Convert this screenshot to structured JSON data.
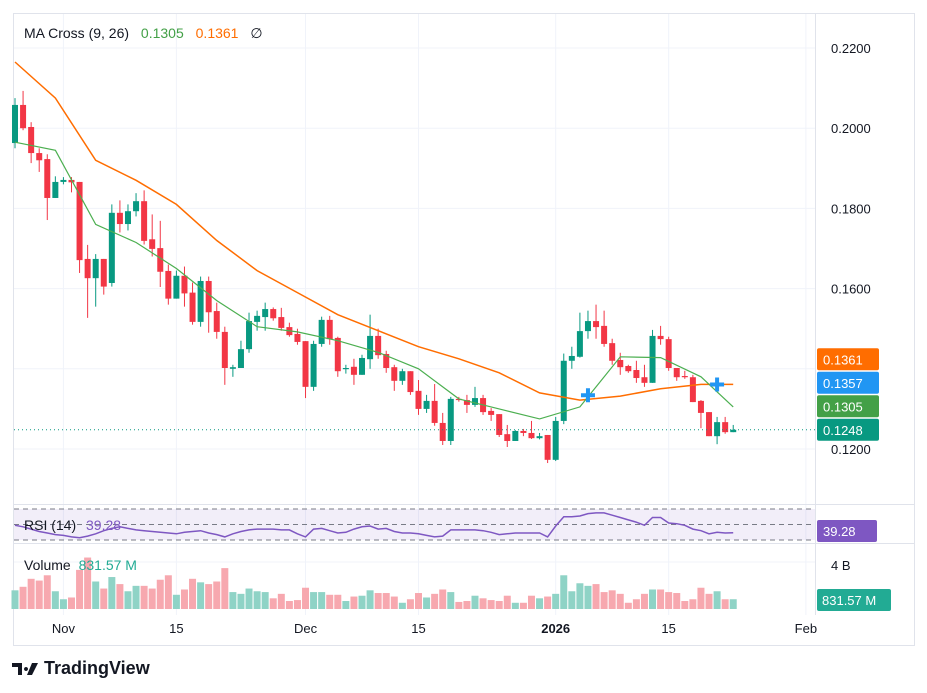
{
  "legend": {
    "title": "MA Cross (9, 26)",
    "fast_value": "0.1305",
    "slow_value": "0.1361",
    "visibility_icon": "∅"
  },
  "rsi_legend": {
    "title": "RSI (14)",
    "value": "39.28"
  },
  "volume_legend": {
    "title": "Volume",
    "value": "831.57 M"
  },
  "logo": {
    "text": "TradingView"
  },
  "colors": {
    "up": "#089981",
    "down": "#f23645",
    "vol_up": "#8fd3c6",
    "vol_down": "#f7a8af",
    "ma_fast": "#4caf50",
    "ma_slow": "#ff6d00",
    "cross": "#2196f3",
    "rsi": "#7e57c2"
  },
  "badges": [
    {
      "text": "0.1361",
      "value": 0.1361,
      "color": "#ff6d00"
    },
    {
      "text": "0.1357",
      "value": 0.1357,
      "color": "#2196f3"
    },
    {
      "text": "0.1305",
      "value": 0.1305,
      "color": "#43a047"
    },
    {
      "text": "0.1248",
      "value": 0.1248,
      "color": "#089981"
    }
  ],
  "rsi_badge": {
    "text": "39.28",
    "color": "#7e57c2"
  },
  "volume_badge": {
    "text": "831.57 M",
    "color": "#22ab94"
  },
  "chart_data": {
    "type": "candlestick",
    "price_axis": {
      "ticks": [
        {
          "v": 0.22,
          "t": "0.2200"
        },
        {
          "v": 0.2,
          "t": "0.2000"
        },
        {
          "v": 0.18,
          "t": "0.1800"
        },
        {
          "v": 0.16,
          "t": "0.1600"
        },
        {
          "v": 0.12,
          "t": "0.1200"
        }
      ],
      "range": [
        0.1135,
        0.2275
      ]
    },
    "last_price": 0.1248,
    "time_axis": [
      {
        "t": "Nov",
        "i": 6
      },
      {
        "t": "15",
        "i": 20
      },
      {
        "t": "Dec",
        "i": 36
      },
      {
        "t": "15",
        "i": 50
      },
      {
        "t": "2026",
        "i": 67,
        "bold": true
      },
      {
        "t": "15",
        "i": 81
      },
      {
        "t": "Feb",
        "i": 98
      }
    ],
    "ohlc": [
      [
        0.1963,
        0.2075,
        0.195,
        0.2058
      ],
      [
        0.2058,
        0.2093,
        0.1995,
        0.2
      ],
      [
        0.2003,
        0.2015,
        0.1913,
        0.1938
      ],
      [
        0.1938,
        0.195,
        0.1891,
        0.192
      ],
      [
        0.1923,
        0.1935,
        0.1771,
        0.1826
      ],
      [
        0.1826,
        0.188,
        0.1826,
        0.1866
      ],
      [
        0.1866,
        0.1878,
        0.186,
        0.1871
      ],
      [
        0.1871,
        0.1878,
        0.184,
        0.1865
      ],
      [
        0.1866,
        0.1866,
        0.1639,
        0.1671
      ],
      [
        0.1674,
        0.1709,
        0.1527,
        0.1626
      ],
      [
        0.1626,
        0.1686,
        0.1555,
        0.1674
      ],
      [
        0.1674,
        0.1674,
        0.1585,
        0.1605
      ],
      [
        0.1614,
        0.181,
        0.1605,
        0.1789
      ],
      [
        0.1789,
        0.182,
        0.174,
        0.1761
      ],
      [
        0.1761,
        0.181,
        0.1745,
        0.1793
      ],
      [
        0.1793,
        0.1838,
        0.178,
        0.1818
      ],
      [
        0.1818,
        0.1845,
        0.171,
        0.1719
      ],
      [
        0.1723,
        0.1785,
        0.168,
        0.1699
      ],
      [
        0.1701,
        0.1769,
        0.1604,
        0.1642
      ],
      [
        0.1644,
        0.166,
        0.156,
        0.1575
      ],
      [
        0.1575,
        0.1645,
        0.1575,
        0.1632
      ],
      [
        0.1632,
        0.1655,
        0.1555,
        0.1588
      ],
      [
        0.159,
        0.1615,
        0.151,
        0.1517
      ],
      [
        0.1517,
        0.163,
        0.1505,
        0.1619
      ],
      [
        0.1619,
        0.163,
        0.149,
        0.1541
      ],
      [
        0.1544,
        0.1565,
        0.1475,
        0.1492
      ],
      [
        0.1492,
        0.1505,
        0.136,
        0.1402
      ],
      [
        0.14,
        0.141,
        0.138,
        0.1404
      ],
      [
        0.1402,
        0.147,
        0.1402,
        0.1449
      ],
      [
        0.1449,
        0.154,
        0.144,
        0.1519
      ],
      [
        0.1517,
        0.1545,
        0.1495,
        0.1532
      ],
      [
        0.1529,
        0.1565,
        0.1495,
        0.1549
      ],
      [
        0.1549,
        0.1553,
        0.152,
        0.1526
      ],
      [
        0.1529,
        0.1552,
        0.1495,
        0.1502
      ],
      [
        0.1504,
        0.1515,
        0.148,
        0.1484
      ],
      [
        0.1487,
        0.15,
        0.146,
        0.1467
      ],
      [
        0.1469,
        0.1469,
        0.1327,
        0.1355
      ],
      [
        0.1355,
        0.147,
        0.1345,
        0.1462
      ],
      [
        0.1462,
        0.153,
        0.1455,
        0.1522
      ],
      [
        0.1522,
        0.1532,
        0.146,
        0.1474
      ],
      [
        0.1477,
        0.148,
        0.138,
        0.1394
      ],
      [
        0.1399,
        0.141,
        0.1388,
        0.1402
      ],
      [
        0.1405,
        0.1425,
        0.136,
        0.1385
      ],
      [
        0.1385,
        0.1435,
        0.1385,
        0.1427
      ],
      [
        0.1424,
        0.1535,
        0.14,
        0.1482
      ],
      [
        0.1482,
        0.15,
        0.1425,
        0.1434
      ],
      [
        0.1437,
        0.1445,
        0.139,
        0.1402
      ],
      [
        0.1404,
        0.141,
        0.1345,
        0.137
      ],
      [
        0.137,
        0.14,
        0.136,
        0.1394
      ],
      [
        0.1394,
        0.1394,
        0.1335,
        0.1342
      ],
      [
        0.1345,
        0.1372,
        0.1285,
        0.13
      ],
      [
        0.13,
        0.1335,
        0.129,
        0.132
      ],
      [
        0.132,
        0.1362,
        0.1258,
        0.1265
      ],
      [
        0.1265,
        0.129,
        0.121,
        0.122
      ],
      [
        0.122,
        0.133,
        0.121,
        0.1325
      ],
      [
        0.1325,
        0.133,
        0.1318,
        0.1322
      ],
      [
        0.1322,
        0.1335,
        0.129,
        0.131
      ],
      [
        0.131,
        0.1355,
        0.1305,
        0.1327
      ],
      [
        0.1327,
        0.1335,
        0.1285,
        0.1292
      ],
      [
        0.1295,
        0.1302,
        0.127,
        0.1285
      ],
      [
        0.1287,
        0.1287,
        0.123,
        0.1235
      ],
      [
        0.1237,
        0.126,
        0.1205,
        0.122
      ],
      [
        0.122,
        0.1247,
        0.122,
        0.1245
      ],
      [
        0.1245,
        0.125,
        0.1232,
        0.124
      ],
      [
        0.124,
        0.127,
        0.1225,
        0.1227
      ],
      [
        0.1227,
        0.124,
        0.1224,
        0.1232
      ],
      [
        0.1235,
        0.1235,
        0.1165,
        0.1173
      ],
      [
        0.1173,
        0.128,
        0.117,
        0.127
      ],
      [
        0.127,
        0.1438,
        0.1262,
        0.142
      ],
      [
        0.142,
        0.1455,
        0.14,
        0.1432
      ],
      [
        0.143,
        0.154,
        0.1428,
        0.1494
      ],
      [
        0.1494,
        0.1545,
        0.1475,
        0.1519
      ],
      [
        0.1519,
        0.156,
        0.1475,
        0.1504
      ],
      [
        0.1507,
        0.1545,
        0.1455,
        0.1462
      ],
      [
        0.1464,
        0.1475,
        0.141,
        0.142
      ],
      [
        0.1422,
        0.144,
        0.1385,
        0.1404
      ],
      [
        0.1407,
        0.141,
        0.139,
        0.1394
      ],
      [
        0.1397,
        0.142,
        0.1365,
        0.1377
      ],
      [
        0.1379,
        0.141,
        0.1355,
        0.1365
      ],
      [
        0.1365,
        0.1497,
        0.1365,
        0.1482
      ],
      [
        0.1482,
        0.1507,
        0.146,
        0.1474
      ],
      [
        0.1474,
        0.148,
        0.1395,
        0.1402
      ],
      [
        0.1402,
        0.1402,
        0.137,
        0.1379
      ],
      [
        0.1382,
        0.1395,
        0.1375,
        0.1379
      ],
      [
        0.1379,
        0.1385,
        0.1317,
        0.1317
      ],
      [
        0.132,
        0.1322,
        0.1252,
        0.129
      ],
      [
        0.1292,
        0.1292,
        0.1232,
        0.1232
      ],
      [
        0.1232,
        0.128,
        0.1212,
        0.1267
      ],
      [
        0.1267,
        0.128,
        0.1238,
        0.1242
      ],
      [
        0.1242,
        0.126,
        0.1242,
        0.1248
      ]
    ],
    "ma_fast": {
      "every": 5,
      "values": [
        0.1965,
        0.1945,
        0.176,
        0.1715,
        0.165,
        0.157,
        0.1505,
        0.1492,
        0.147,
        0.1441,
        0.14,
        0.1325,
        0.13,
        0.1275,
        0.1305,
        0.143,
        0.1428,
        0.138,
        0.1305
      ]
    },
    "ma_slow": {
      "every": 5,
      "values": [
        0.2165,
        0.2075,
        0.192,
        0.187,
        0.181,
        0.172,
        0.1645,
        0.159,
        0.1535,
        0.1495,
        0.1455,
        0.1425,
        0.139,
        0.134,
        0.1322,
        0.1332,
        0.135,
        0.1361,
        0.1361
      ]
    },
    "crosses": [
      {
        "i": 71,
        "v": 0.1334
      },
      {
        "i": 87,
        "v": 0.1361
      }
    ],
    "rsi": {
      "levels": [
        70,
        50,
        30
      ],
      "values": [
        49,
        47,
        44,
        41,
        39,
        37,
        36,
        34,
        33,
        35,
        38,
        42,
        45,
        47,
        45,
        43,
        42,
        41,
        40,
        39,
        38,
        40,
        41,
        42,
        39,
        37,
        34,
        38,
        41,
        43,
        44,
        44,
        44,
        43,
        43,
        38,
        34,
        44,
        45,
        42,
        39,
        40,
        44,
        47,
        48,
        44,
        45,
        41,
        39,
        39,
        38,
        36,
        34,
        35,
        43,
        43,
        43,
        43,
        42,
        40,
        37,
        38,
        39,
        39,
        39,
        39,
        34,
        48,
        60,
        60,
        61,
        64,
        65,
        65,
        62,
        59,
        56,
        53,
        49,
        59,
        59,
        52,
        51,
        49,
        44,
        42,
        38,
        40,
        39,
        39.28
      ]
    },
    "volume": {
      "unit": "B",
      "axis_tick": {
        "v": 4,
        "t": "4 B"
      },
      "values": [
        1.59,
        1.89,
        2.57,
        2.42,
        2.87,
        1.51,
        0.83,
        0.98,
        3.33,
        4.38,
        2.34,
        1.74,
        2.72,
        2.12,
        1.51,
        1.97,
        1.97,
        1.74,
        2.49,
        2.87,
        1.21,
        1.66,
        2.57,
        2.27,
        2.12,
        2.34,
        3.48,
        1.44,
        1.29,
        1.74,
        1.51,
        1.44,
        0.91,
        1.29,
        0.68,
        0.76,
        1.81,
        1.44,
        1.44,
        1.21,
        1.21,
        0.68,
        1.06,
        1.13,
        1.59,
        1.36,
        1.36,
        1.06,
        0.53,
        0.83,
        1.36,
        0.98,
        1.29,
        1.66,
        1.44,
        0.6,
        0.68,
        1.13,
        0.91,
        0.76,
        0.68,
        1.13,
        0.53,
        0.53,
        1.13,
        0.91,
        1.06,
        1.29,
        2.87,
        1.51,
        2.19,
        1.97,
        2.12,
        1.44,
        1.59,
        1.29,
        0.53,
        0.83,
        1.29,
        1.66,
        1.66,
        1.44,
        1.36,
        0.68,
        0.83,
        1.81,
        1.29,
        1.51,
        0.83,
        0.83157
      ]
    }
  }
}
